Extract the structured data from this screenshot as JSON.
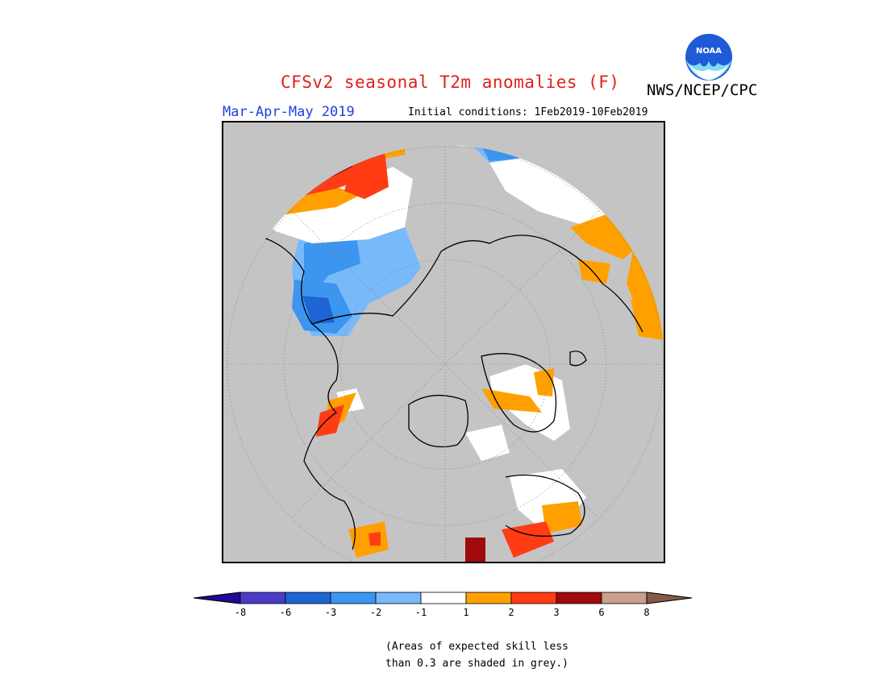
{
  "header": {
    "title": "CFSv2 seasonal T2m anomalies (F)",
    "agency": "NWS/NCEP/CPC",
    "season": "Mar-Apr-May 2019",
    "initial_conditions": "Initial conditions: 1Feb2019-10Feb2019",
    "logo_text": "NOAA"
  },
  "colorbar": {
    "tick_labels": [
      "-8",
      "-6",
      "-3",
      "-2",
      "-1",
      "1",
      "2",
      "3",
      "6",
      "8"
    ],
    "colors": {
      "below_min": "#1e0a96",
      "b1": "#4b3cc8",
      "b2": "#1e64d2",
      "b3": "#3c96f0",
      "b4": "#78b9fa",
      "neutral": "#ffffff",
      "o1": "#ffa000",
      "o2": "#ff3c14",
      "o3": "#a00a0a",
      "o4": "#c8a08c",
      "above_max": "#825a46"
    }
  },
  "map": {
    "background": "#c4c4c4",
    "projection": "north polar stereographic",
    "icon": "noaa-logo"
  },
  "footnote": {
    "line1": "(Areas of expected skill less",
    "line2": "than 0.3 are shaded in grey.)"
  }
}
